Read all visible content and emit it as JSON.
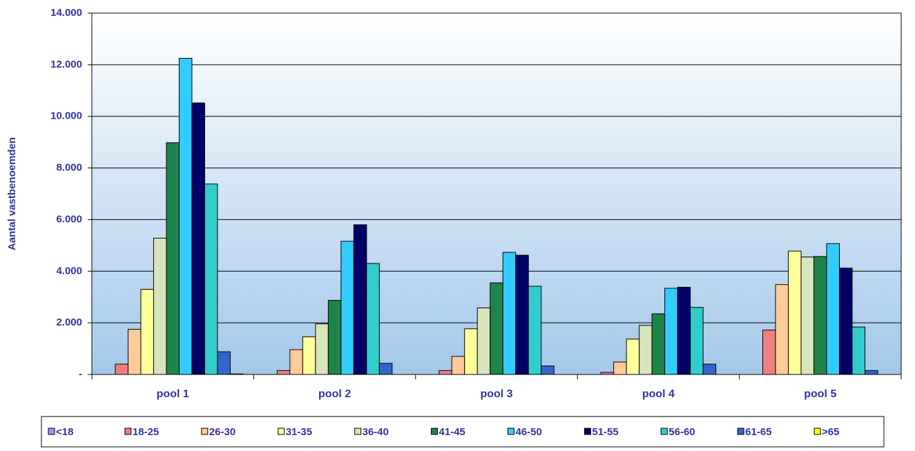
{
  "chart_data": {
    "type": "bar",
    "y_label": "Aantal vastbenoemden",
    "categories": [
      "pool 1",
      "pool 2",
      "pool 3",
      "pool 4",
      "pool 5"
    ],
    "series": [
      {
        "name": "<18",
        "color": "#9999ff",
        "values": [
          0,
          0,
          0,
          0,
          0
        ]
      },
      {
        "name": "18-25",
        "color": "#f08080",
        "values": [
          400,
          150,
          150,
          80,
          1720
        ]
      },
      {
        "name": "26-30",
        "color": "#ffcc99",
        "values": [
          1750,
          960,
          700,
          480,
          3480
        ]
      },
      {
        "name": "31-35",
        "color": "#ffff99",
        "values": [
          3300,
          1460,
          1770,
          1370,
          4780
        ]
      },
      {
        "name": "36-40",
        "color": "#d8e4bc",
        "values": [
          5280,
          1960,
          2580,
          1900,
          4550
        ]
      },
      {
        "name": "41-45",
        "color": "#1e8449",
        "values": [
          8980,
          2870,
          3550,
          2350,
          4570
        ]
      },
      {
        "name": "46-50",
        "color": "#33ccff",
        "values": [
          12250,
          5160,
          4730,
          3340,
          5070
        ]
      },
      {
        "name": "51-55",
        "color": "#000066",
        "values": [
          10520,
          5800,
          4620,
          3380,
          4120
        ]
      },
      {
        "name": "56-60",
        "color": "#33cccc",
        "values": [
          7380,
          4300,
          3420,
          2600,
          1840
        ]
      },
      {
        "name": "61-65",
        "color": "#3366cc",
        "values": [
          880,
          430,
          330,
          400,
          150
        ]
      },
      {
        "name": ">65",
        "color": "#ffff00",
        "values": [
          20,
          0,
          0,
          0,
          0
        ]
      }
    ],
    "ylim": [
      0,
      14000
    ],
    "yticks": [
      {
        "value": 0,
        "label": "-"
      },
      {
        "value": 2000,
        "label": "2.000"
      },
      {
        "value": 4000,
        "label": "4.000"
      },
      {
        "value": 6000,
        "label": "6.000"
      },
      {
        "value": 8000,
        "label": "8.000"
      },
      {
        "value": 10000,
        "label": "10.000"
      },
      {
        "value": 12000,
        "label": "12.000"
      },
      {
        "value": 14000,
        "label": "14.000"
      }
    ],
    "grid": true,
    "legend": "bottom"
  }
}
